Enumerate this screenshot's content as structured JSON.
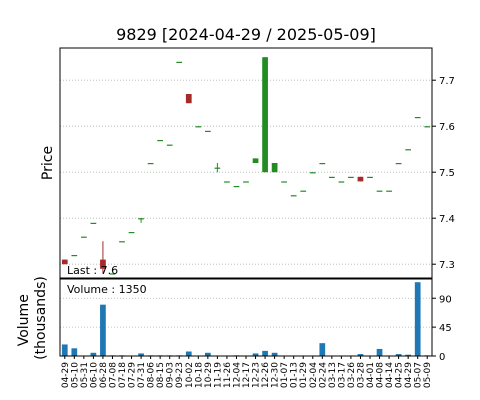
{
  "chart_data": {
    "type": "candlestick",
    "title": "9829   [2024-04-29 / 2025-05-09]",
    "price_ylabel": "Price",
    "volume_ylabel_lines": [
      "Volume",
      "(thousands)"
    ],
    "last_label": "Last : 7.6",
    "volume_label": "Volume : 1350",
    "price_ylim": [
      7.27,
      7.77
    ],
    "price_ticks": [
      7.3,
      7.4,
      7.5,
      7.6,
      7.7
    ],
    "volume_ylim": [
      0,
      120
    ],
    "volume_ticks": [
      0,
      45,
      90
    ],
    "grid": true,
    "colors": {
      "up": "#228b22",
      "down": "#a52a2a",
      "volume": "#1f77b4",
      "grid": "#b0b0b0"
    },
    "candles": [
      {
        "date": "04-29",
        "open": 7.31,
        "high": 7.31,
        "low": 7.3,
        "close": 7.3,
        "volume": 18
      },
      {
        "date": "05-10",
        "open": 7.32,
        "high": 7.32,
        "low": 7.32,
        "close": 7.32,
        "volume": 12
      },
      {
        "date": "05-31",
        "open": 7.36,
        "high": 7.36,
        "low": 7.36,
        "close": 7.36,
        "volume": 0
      },
      {
        "date": "06-10",
        "open": 7.39,
        "high": 7.39,
        "low": 7.39,
        "close": 7.39,
        "volume": 5
      },
      {
        "date": "06-28",
        "open": 7.31,
        "high": 7.35,
        "low": 7.28,
        "close": 7.29,
        "volume": 80
      },
      {
        "date": "07-08",
        "open": 7.28,
        "high": 7.28,
        "low": 7.28,
        "close": 7.28,
        "volume": 1
      },
      {
        "date": "07-18",
        "open": 7.35,
        "high": 7.35,
        "low": 7.35,
        "close": 7.35,
        "volume": 1
      },
      {
        "date": "07-29",
        "open": 7.37,
        "high": 7.37,
        "low": 7.37,
        "close": 7.37,
        "volume": 0
      },
      {
        "date": "07-31",
        "open": 7.4,
        "high": 7.4,
        "low": 7.39,
        "close": 7.4,
        "volume": 4
      },
      {
        "date": "08-06",
        "open": 7.52,
        "high": 7.52,
        "low": 7.52,
        "close": 7.52,
        "volume": 1
      },
      {
        "date": "08-15",
        "open": 7.57,
        "high": 7.57,
        "low": 7.57,
        "close": 7.57,
        "volume": 1
      },
      {
        "date": "09-03",
        "open": 7.56,
        "high": 7.56,
        "low": 7.56,
        "close": 7.56,
        "volume": 1
      },
      {
        "date": "09-23",
        "open": 7.74,
        "high": 7.74,
        "low": 7.74,
        "close": 7.74,
        "volume": 1
      },
      {
        "date": "10-02",
        "open": 7.67,
        "high": 7.67,
        "low": 7.65,
        "close": 7.65,
        "volume": 7
      },
      {
        "date": "10-18",
        "open": 7.6,
        "high": 7.6,
        "low": 7.6,
        "close": 7.6,
        "volume": 0
      },
      {
        "date": "10-29",
        "open": 7.59,
        "high": 7.59,
        "low": 7.59,
        "close": 7.59,
        "volume": 5
      },
      {
        "date": "11-19",
        "open": 7.51,
        "high": 7.52,
        "low": 7.5,
        "close": 7.51,
        "volume": 0
      },
      {
        "date": "11-26",
        "open": 7.48,
        "high": 7.48,
        "low": 7.48,
        "close": 7.48,
        "volume": 0
      },
      {
        "date": "12-04",
        "open": 7.47,
        "high": 7.47,
        "low": 7.47,
        "close": 7.47,
        "volume": 1
      },
      {
        "date": "12-17",
        "open": 7.48,
        "high": 7.48,
        "low": 7.48,
        "close": 7.48,
        "volume": 0
      },
      {
        "date": "12-23",
        "open": 7.52,
        "high": 7.53,
        "low": 7.52,
        "close": 7.53,
        "volume": 4
      },
      {
        "date": "12-26",
        "open": 7.5,
        "high": 7.75,
        "low": 7.5,
        "close": 7.75,
        "volume": 8
      },
      {
        "date": "12-30",
        "open": 7.5,
        "high": 7.52,
        "low": 7.5,
        "close": 7.52,
        "volume": 5
      },
      {
        "date": "01-07",
        "open": 7.48,
        "high": 7.48,
        "low": 7.48,
        "close": 7.48,
        "volume": 0
      },
      {
        "date": "01-13",
        "open": 7.45,
        "high": 7.45,
        "low": 7.45,
        "close": 7.45,
        "volume": 0
      },
      {
        "date": "01-29",
        "open": 7.46,
        "high": 7.46,
        "low": 7.46,
        "close": 7.46,
        "volume": 0
      },
      {
        "date": "02-04",
        "open": 7.5,
        "high": 7.5,
        "low": 7.5,
        "close": 7.5,
        "volume": 0
      },
      {
        "date": "02-24",
        "open": 7.52,
        "high": 7.52,
        "low": 7.52,
        "close": 7.52,
        "volume": 20
      },
      {
        "date": "03-13",
        "open": 7.49,
        "high": 7.49,
        "low": 7.49,
        "close": 7.49,
        "volume": 0
      },
      {
        "date": "03-17",
        "open": 7.48,
        "high": 7.48,
        "low": 7.48,
        "close": 7.48,
        "volume": 0
      },
      {
        "date": "03-26",
        "open": 7.49,
        "high": 7.49,
        "low": 7.49,
        "close": 7.49,
        "volume": 0
      },
      {
        "date": "03-28",
        "open": 7.49,
        "high": 7.49,
        "low": 7.48,
        "close": 7.48,
        "volume": 3
      },
      {
        "date": "04-01",
        "open": 7.49,
        "high": 7.49,
        "low": 7.49,
        "close": 7.49,
        "volume": 0
      },
      {
        "date": "04-08",
        "open": 7.46,
        "high": 7.46,
        "low": 7.46,
        "close": 7.46,
        "volume": 11
      },
      {
        "date": "04-14",
        "open": 7.46,
        "high": 7.46,
        "low": 7.46,
        "close": 7.46,
        "volume": 0
      },
      {
        "date": "04-25",
        "open": 7.52,
        "high": 7.52,
        "low": 7.52,
        "close": 7.52,
        "volume": 3
      },
      {
        "date": "04-29",
        "open": 7.55,
        "high": 7.55,
        "low": 7.55,
        "close": 7.55,
        "volume": 2
      },
      {
        "date": "05-07",
        "open": 7.62,
        "high": 7.62,
        "low": 7.62,
        "close": 7.62,
        "volume": 115
      },
      {
        "date": "05-09",
        "open": 7.6,
        "high": 7.6,
        "low": 7.6,
        "close": 7.6,
        "volume": 1
      }
    ]
  }
}
